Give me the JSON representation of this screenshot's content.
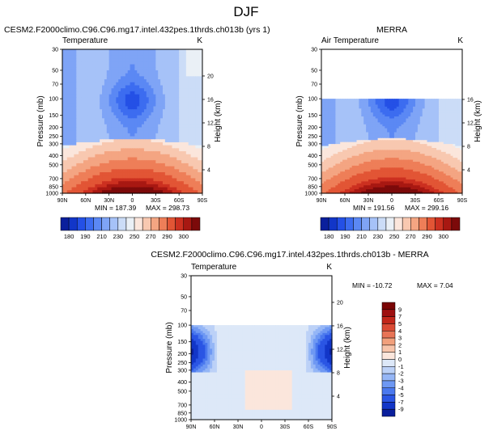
{
  "page": {
    "title": "DJF"
  },
  "colors": {
    "temp_scale": [
      "#0a1f9c",
      "#1236c8",
      "#2450e6",
      "#3c6cf0",
      "#5b88f4",
      "#7fa4f6",
      "#a6c2f8",
      "#cbdcf7",
      "#eaf0f6",
      "#fbe6dc",
      "#f8c8b0",
      "#f4a582",
      "#ee7e58",
      "#e25535",
      "#cc3020",
      "#a81812",
      "#7c0a0a"
    ],
    "diff_scale": [
      "#0a1f9c",
      "#1236c8",
      "#2a55e4",
      "#4a78ee",
      "#6e98f3",
      "#95b6f6",
      "#bcd1f7",
      "#dde8f8",
      "#fbe6dc",
      "#f7c4aa",
      "#f1a07c",
      "#e87456",
      "#da4a34",
      "#c2261a",
      "#9e1010",
      "#7a0505"
    ]
  },
  "chart_data": [
    {
      "id": "model",
      "type": "heatmap",
      "title": "CESM2.F2000climo.C96.C96.mg17.intel.432pes.1thrds.ch013b (yrs 1)",
      "left_label": "Temperature",
      "units": "K",
      "ylabel": "Pressure (mb)",
      "ylabel_right": "Height (km)",
      "x_ticks": [
        "90N",
        "60N",
        "30N",
        "0",
        "30S",
        "60S",
        "90S"
      ],
      "pressure_ticks": [
        30,
        50,
        70,
        100,
        150,
        200,
        250,
        300,
        400,
        500,
        700,
        850,
        1000
      ],
      "height_ticks": [
        4,
        8,
        12,
        16,
        20
      ],
      "min_label": "MIN = 187.39",
      "max_label": "MAX = 298.73",
      "ylim": [
        30,
        1000
      ],
      "data_top_mb": 30
    },
    {
      "id": "obs",
      "type": "heatmap",
      "title": "MERRA",
      "left_label": "Air Temperature",
      "units": "K",
      "ylabel": "Pressure (mb)",
      "ylabel_right": "Height (km)",
      "x_ticks": [
        "90N",
        "60N",
        "30N",
        "0",
        "30S",
        "60S",
        "90S"
      ],
      "pressure_ticks": [
        30,
        50,
        70,
        100,
        150,
        200,
        250,
        300,
        400,
        500,
        700,
        850,
        1000
      ],
      "height_ticks": [
        4,
        8,
        12,
        16
      ],
      "min_label": "MIN = 191.56",
      "max_label": "MAX = 299.16",
      "ylim": [
        30,
        1000
      ],
      "data_top_mb": 100
    },
    {
      "id": "diff",
      "type": "heatmap",
      "title": "CESM2.F2000climo.C96.C96.mg17.intel.432pes.1thrds.ch013b - MERRA",
      "left_label": "Temperature",
      "units": "K",
      "ylabel": "Pressure (mb)",
      "ylabel_right": "Height (km)",
      "x_ticks": [
        "90N",
        "60N",
        "30N",
        "0",
        "30S",
        "60S",
        "90S"
      ],
      "pressure_ticks": [
        30,
        50,
        70,
        100,
        150,
        200,
        250,
        300,
        400,
        500,
        700,
        850,
        1000
      ],
      "height_ticks": [
        4,
        8,
        12,
        16,
        20
      ],
      "min_label": "MIN = -10.72",
      "max_label": "MAX =  7.04",
      "ylim": [
        30,
        1000
      ],
      "data_top_mb": 100
    }
  ],
  "colorbar_temp": {
    "labels": [
      "180",
      "190",
      "210",
      "230",
      "250",
      "270",
      "290",
      "300"
    ]
  },
  "colorbar_diff": {
    "labels": [
      "9",
      "7",
      "5",
      "4",
      "3",
      "2",
      "1",
      "0",
      "-1",
      "-2",
      "-3",
      "-4",
      "-5",
      "-7",
      "-9"
    ]
  }
}
